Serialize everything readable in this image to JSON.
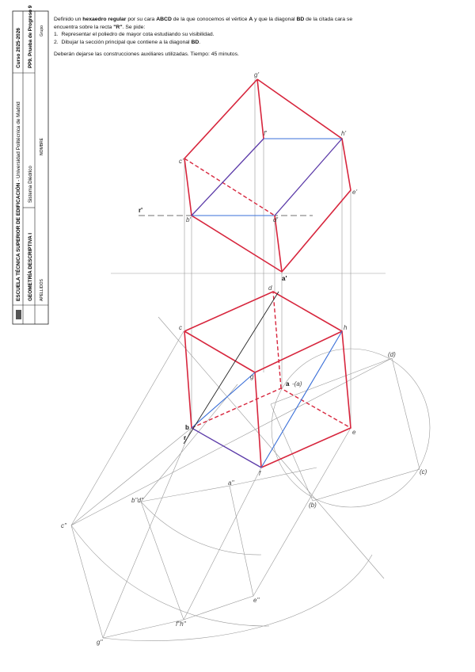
{
  "header": {
    "school": "ESCUELA TÉCNICA SUPERIOR DE EDIFICACIÓN",
    "university": "- Universidad Politécnica de Madrid",
    "course": "Curso 2025-2026",
    "subject": "GEOMETRÍA DESCRIPTIVA I",
    "test": "PP9. Prueba de Progreso 9",
    "topic": "Sistema Diédrico",
    "surname": "APELLIDOS",
    "name": "NOMBRE",
    "group": "Grupo"
  },
  "statement": {
    "intro": [
      "Definido un ",
      "hexaedro regular",
      " por su cara ",
      "ABCD",
      " de la que conocemos el vértice ",
      "A",
      " y que la diagonal ",
      "BD",
      " de la citada cara se encuentra sobre la recta ",
      "\"R\"",
      ". Se pide:"
    ],
    "items": [
      {
        "number": "1.",
        "text": [
          "Representar el poliedro de mayor cota estudiando su visibilidad."
        ]
      },
      {
        "number": "2.",
        "text": [
          "Dibujar la sección principal que contiene a la diagonal ",
          "BD",
          "."
        ]
      }
    ],
    "note": "Deberán dejarse las construcciones auxiliares utilizadas. Tiempo: 45 minutos."
  },
  "labels": {
    "elevation": [
      "g'",
      "f'",
      "h'",
      "c'",
      "e'",
      "r'",
      "b'",
      "d'",
      "a'"
    ],
    "plan": [
      "d",
      "c",
      "h",
      "g",
      "a",
      "-(a)",
      "(d)",
      "b",
      "r",
      "f",
      "e",
      "(c)",
      "(b)"
    ],
    "profile": [
      "a''",
      "b''d''",
      "c''",
      "f''h''",
      "e''",
      "g''"
    ]
  }
}
